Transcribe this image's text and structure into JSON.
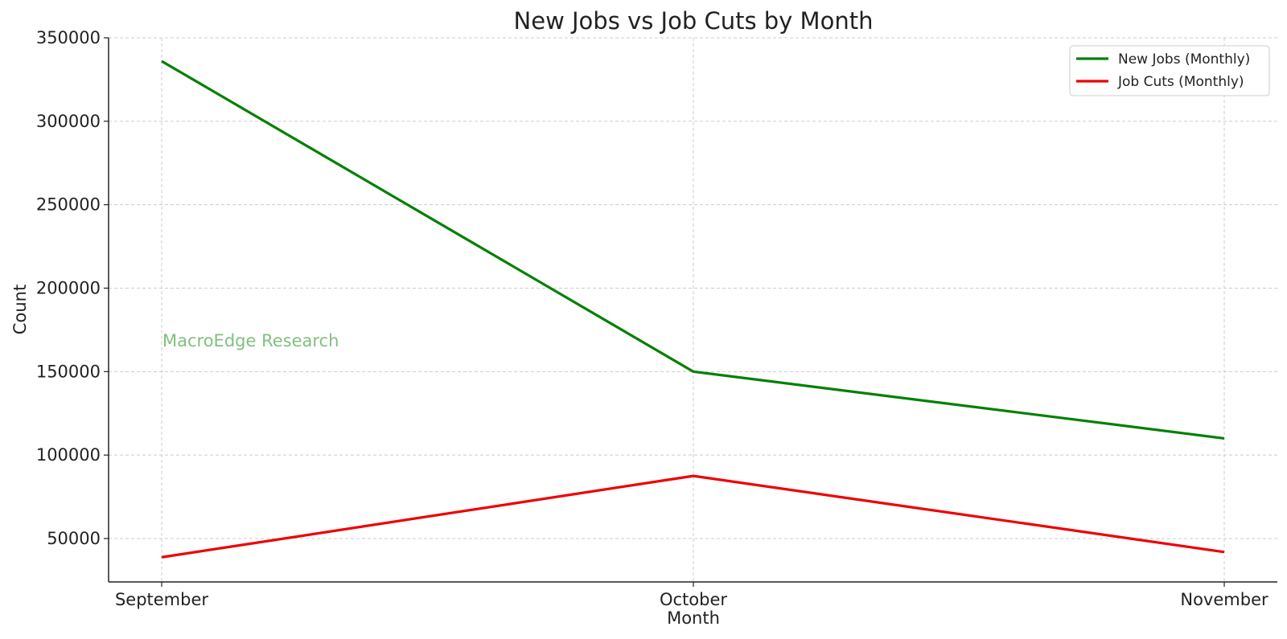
{
  "chart_data": {
    "type": "line",
    "title": "New Jobs vs Job Cuts by Month",
    "xlabel": "Month",
    "ylabel": "Count",
    "categories": [
      "September",
      "October",
      "November"
    ],
    "series": [
      {
        "name": "New Jobs (Monthly)",
        "values": [
          336000,
          150000,
          110000
        ],
        "color": "#008000"
      },
      {
        "name": "Job Cuts (Monthly)",
        "values": [
          38800,
          87500,
          41900
        ],
        "color": "#ee0000"
      }
    ],
    "ylim": [
      24000,
      350000
    ],
    "yticks": [
      50000,
      100000,
      150000,
      200000,
      250000,
      300000,
      350000
    ],
    "ytick_labels": [
      "50000",
      "100000",
      "150000",
      "200000",
      "250000",
      "300000",
      "350000"
    ],
    "grid": true,
    "legend_position": "top-right",
    "watermark": {
      "text": "MacroEdge Research",
      "color": "#80c080"
    }
  }
}
